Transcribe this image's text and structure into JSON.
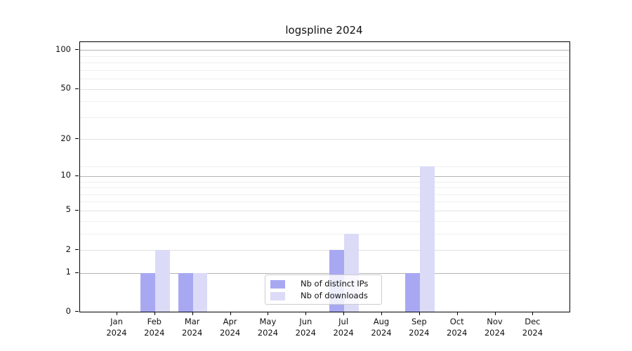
{
  "title": "logspline 2024",
  "legend": {
    "items": [
      {
        "label": "Nb of distinct IPs",
        "color": "#a8a8f2"
      },
      {
        "label": "Nb of downloads",
        "color": "#dbdbf8"
      }
    ]
  },
  "chart_data": {
    "type": "bar",
    "title": "logspline 2024",
    "categories": [
      "Jan",
      "Feb",
      "Mar",
      "Apr",
      "May",
      "Jun",
      "Jul",
      "Aug",
      "Sep",
      "Oct",
      "Nov",
      "Dec"
    ],
    "x_tick_year": "2024",
    "series": [
      {
        "name": "Nb of distinct IPs",
        "color": "#a8a8f2",
        "values": [
          0,
          1,
          1,
          0,
          0,
          0,
          2,
          0,
          1,
          0,
          0,
          0
        ]
      },
      {
        "name": "Nb of downloads",
        "color": "#dbdbf8",
        "values": [
          0,
          2,
          1,
          0,
          0,
          0,
          3,
          0,
          12,
          0,
          0,
          0
        ]
      }
    ],
    "yscale": "log1p",
    "ylim": [
      0,
      115
    ],
    "yticks_major": [
      0,
      1,
      2,
      5,
      10,
      20,
      50,
      100
    ],
    "yticks_minor": [
      3,
      4,
      6,
      7,
      8,
      9,
      12,
      30,
      40,
      60,
      70,
      80,
      90
    ],
    "strong_gridlines": [
      1,
      10,
      100
    ],
    "grid": "on",
    "legend_position": "lower center",
    "colors": {
      "grid_strong": "#b4b4b4",
      "grid_mid": "#e1e1e1",
      "grid_minor": "#efefef",
      "axis": "#000000"
    }
  }
}
